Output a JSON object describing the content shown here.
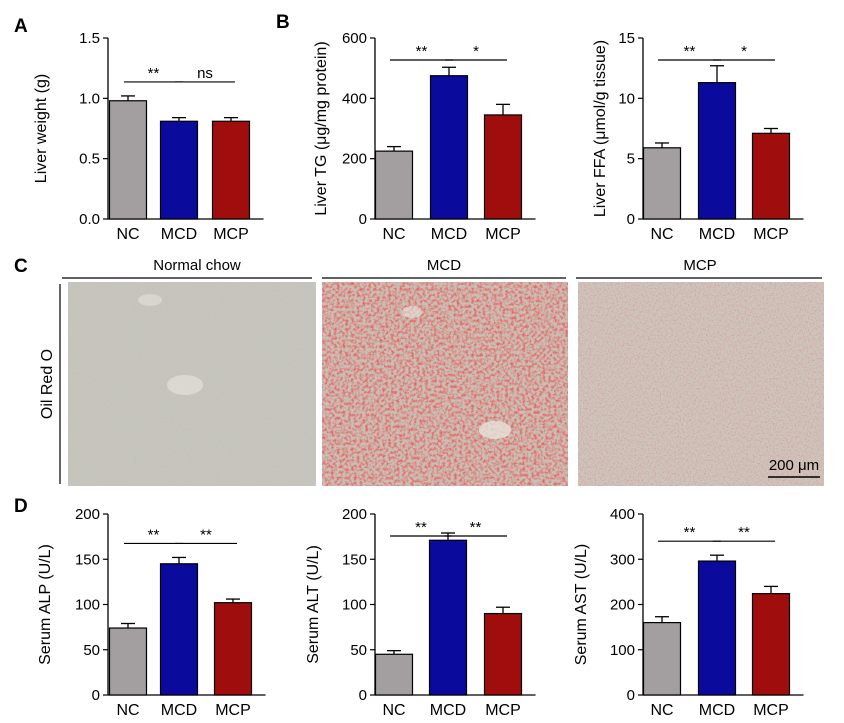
{
  "panels": {
    "A": "A",
    "B": "B",
    "C": "C",
    "D": "D"
  },
  "colors": {
    "NC": "#a39ea0",
    "MCD": "#0a0a9c",
    "MCP": "#a00d0d"
  },
  "microscopy": {
    "stain_label": "Oil Red O",
    "titles": [
      "Normal chow",
      "MCD",
      "MCP"
    ],
    "scale_bar": "200 μm"
  },
  "chart_data": [
    {
      "id": "liver-weight",
      "type": "bar",
      "categories": [
        "NC",
        "MCD",
        "MCP"
      ],
      "values": [
        0.98,
        0.81,
        0.81
      ],
      "errors": [
        0.04,
        0.03,
        0.03
      ],
      "ylabel": "Liver weight (g)",
      "ylim": [
        0,
        1.5
      ],
      "yticks": [
        "0.0",
        "0.5",
        "1.0",
        "1.5"
      ],
      "significance": [
        {
          "from": 0,
          "to": 1,
          "label": "**"
        },
        {
          "from": 1,
          "to": 2,
          "label": "ns"
        }
      ]
    },
    {
      "id": "liver-tg",
      "type": "bar",
      "categories": [
        "NC",
        "MCD",
        "MCP"
      ],
      "values": [
        225,
        475,
        345
      ],
      "errors": [
        15,
        28,
        35
      ],
      "ylabel": "Liver TG (μg/mg protein)",
      "ylim": [
        0,
        600
      ],
      "yticks": [
        "0",
        "200",
        "400",
        "600"
      ],
      "significance": [
        {
          "from": 0,
          "to": 1,
          "label": "**"
        },
        {
          "from": 1,
          "to": 2,
          "label": "*"
        }
      ]
    },
    {
      "id": "liver-ffa",
      "type": "bar",
      "categories": [
        "NC",
        "MCD",
        "MCP"
      ],
      "values": [
        5.9,
        11.3,
        7.1
      ],
      "errors": [
        0.4,
        1.4,
        0.4
      ],
      "ylabel": "Liver FFA (μmol/g tissue)",
      "ylim": [
        0,
        15
      ],
      "yticks": [
        "0",
        "5",
        "10",
        "15"
      ],
      "significance": [
        {
          "from": 0,
          "to": 1,
          "label": "**"
        },
        {
          "from": 1,
          "to": 2,
          "label": "*"
        }
      ]
    },
    {
      "id": "serum-alp",
      "type": "bar",
      "categories": [
        "NC",
        "MCD",
        "MCP"
      ],
      "values": [
        74,
        145,
        102
      ],
      "errors": [
        5,
        7,
        4
      ],
      "ylabel": "Serum ALP (U/L)",
      "ylim": [
        0,
        200
      ],
      "yticks": [
        "0",
        "50",
        "100",
        "150",
        "200"
      ],
      "significance": [
        {
          "from": 0,
          "to": 1,
          "label": "**"
        },
        {
          "from": 1,
          "to": 2,
          "label": "**"
        }
      ]
    },
    {
      "id": "serum-alt",
      "type": "bar",
      "categories": [
        "NC",
        "MCD",
        "MCP"
      ],
      "values": [
        45,
        171,
        90
      ],
      "errors": [
        4,
        8,
        7
      ],
      "ylabel": "Serum ALT (U/L)",
      "ylim": [
        0,
        200
      ],
      "yticks": [
        "0",
        "50",
        "100",
        "150",
        "200"
      ],
      "significance": [
        {
          "from": 0,
          "to": 1,
          "label": "**"
        },
        {
          "from": 1,
          "to": 2,
          "label": "**"
        }
      ]
    },
    {
      "id": "serum-ast",
      "type": "bar",
      "categories": [
        "NC",
        "MCD",
        "MCP"
      ],
      "values": [
        160,
        296,
        224
      ],
      "errors": [
        13,
        13,
        16
      ],
      "ylabel": "Serum AST (U/L)",
      "ylim": [
        0,
        400
      ],
      "yticks": [
        "0",
        "100",
        "200",
        "300",
        "400"
      ],
      "significance": [
        {
          "from": 0,
          "to": 1,
          "label": "**"
        },
        {
          "from": 1,
          "to": 2,
          "label": "**"
        }
      ]
    }
  ]
}
